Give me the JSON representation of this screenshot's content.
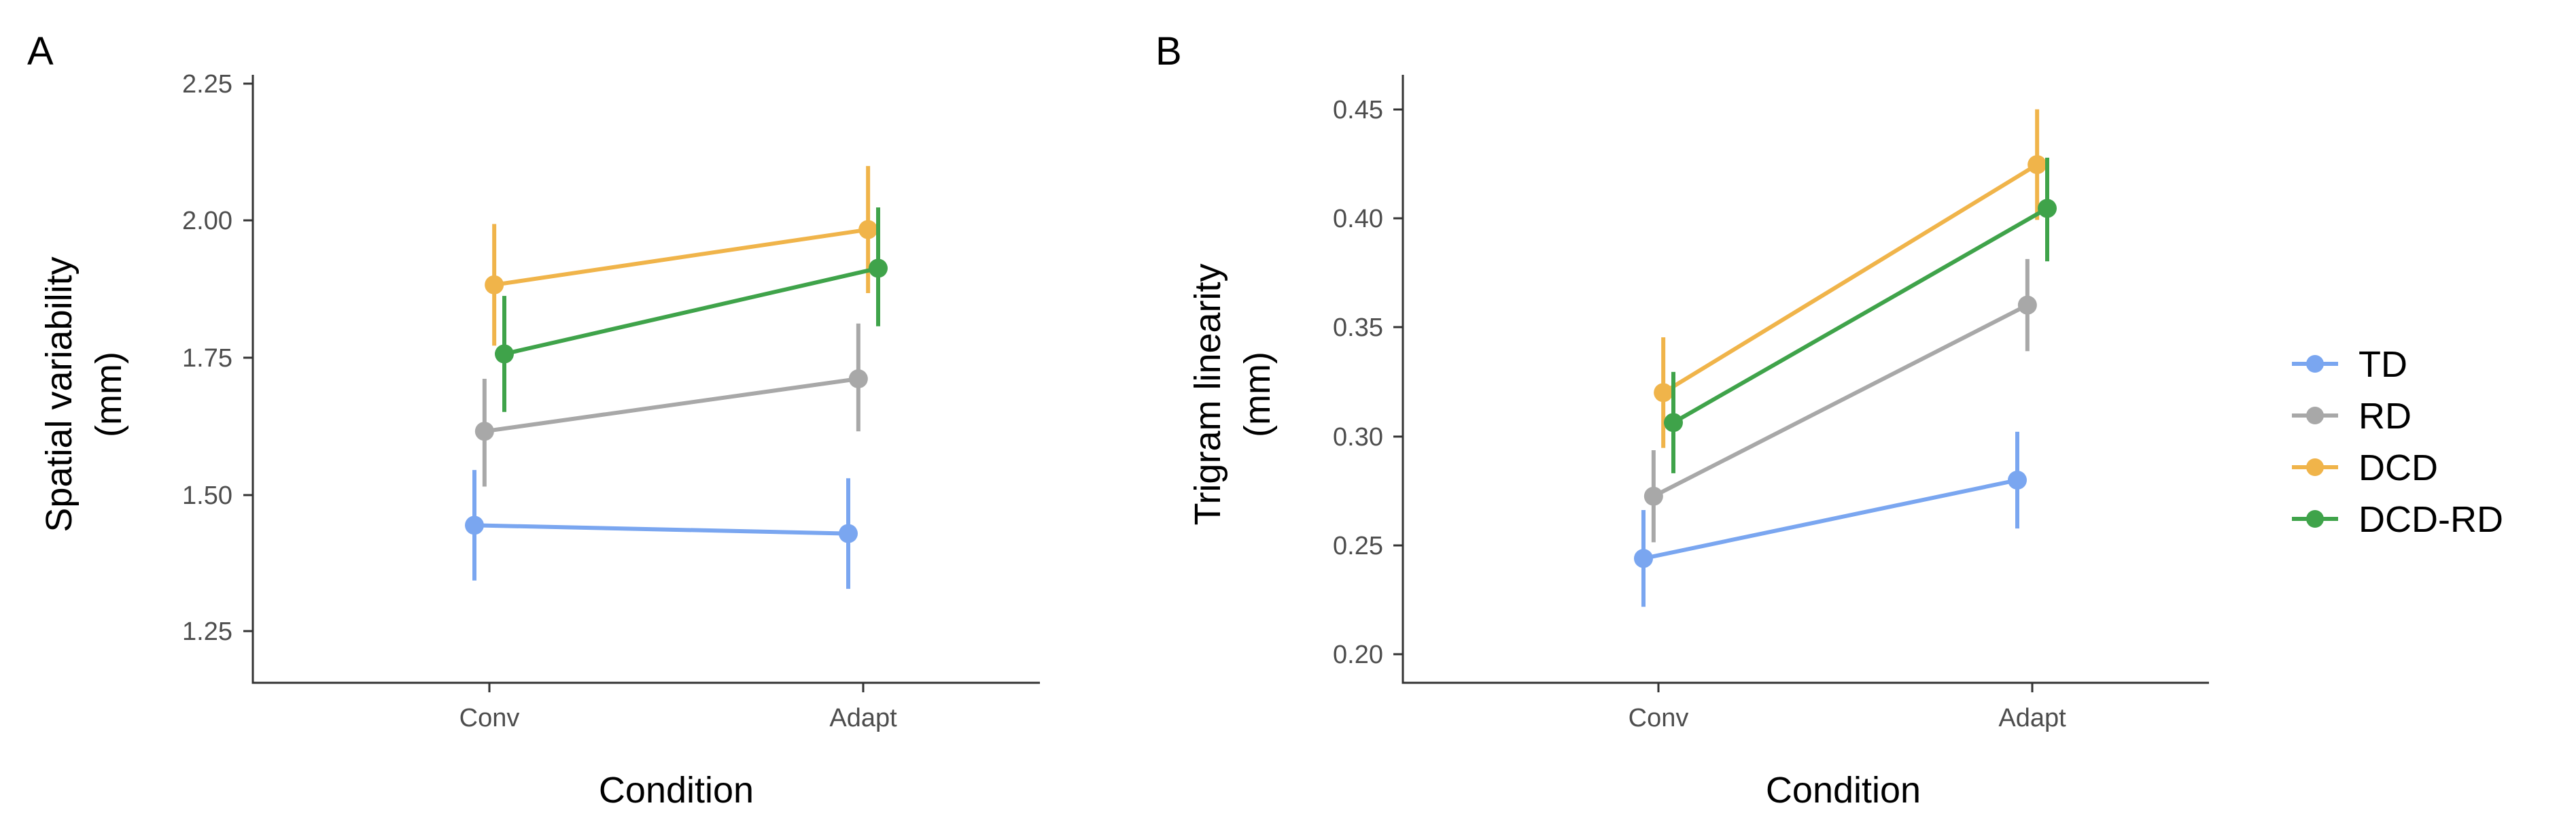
{
  "legend": {
    "entries": [
      {
        "name": "TD",
        "color": "#7aa6f0"
      },
      {
        "name": "RD",
        "color": "#a8a8a8"
      },
      {
        "name": "DCD",
        "color": "#f0b44a"
      },
      {
        "name": "DCD-RD",
        "color": "#3fa34a"
      }
    ]
  },
  "chart_data": [
    {
      "type": "line",
      "panel_label": "A",
      "xlabel": "Condition",
      "ylabel_lines": [
        "Spatial variability",
        "(mm)"
      ],
      "categories": [
        "Conv",
        "Adapt"
      ],
      "ylim": [
        1.17,
        2.27
      ],
      "yticks": [
        1.25,
        1.5,
        1.75,
        2.0,
        2.25
      ],
      "ytick_labels": [
        "1.25",
        "1.50",
        "1.75",
        "2.00",
        "2.25"
      ],
      "series": [
        {
          "name": "TD",
          "color": "#7aa6f0",
          "values": [
            1.455,
            1.44
          ],
          "err_low": [
            1.355,
            1.34
          ],
          "err_high": [
            1.555,
            1.54
          ],
          "dodge": -0.04
        },
        {
          "name": "RD",
          "color": "#a8a8a8",
          "values": [
            1.625,
            1.72
          ],
          "err_low": [
            1.525,
            1.625
          ],
          "err_high": [
            1.72,
            1.82
          ],
          "dodge": -0.013
        },
        {
          "name": "DCD",
          "color": "#f0b44a",
          "values": [
            1.89,
            1.99
          ],
          "err_low": [
            1.78,
            1.875
          ],
          "err_high": [
            2.0,
            2.105
          ],
          "dodge": 0.013
        },
        {
          "name": "DCD-RD",
          "color": "#3fa34a",
          "values": [
            1.765,
            1.92
          ],
          "err_low": [
            1.66,
            1.815
          ],
          "err_high": [
            1.87,
            2.03
          ],
          "dodge": 0.04
        }
      ]
    },
    {
      "type": "line",
      "panel_label": "B",
      "xlabel": "Condition",
      "ylabel_lines": [
        "Trigram linearity",
        "(mm)"
      ],
      "categories": [
        "Conv",
        "Adapt"
      ],
      "ylim": [
        0.193,
        0.457
      ],
      "yticks": [
        0.2,
        0.25,
        0.3,
        0.35,
        0.4,
        0.45
      ],
      "ytick_labels": [
        "0.20",
        "0.25",
        "0.30",
        "0.35",
        "0.40",
        "0.45"
      ],
      "series": [
        {
          "name": "TD",
          "color": "#7aa6f0",
          "values": [
            0.247,
            0.281
          ],
          "err_low": [
            0.226,
            0.26
          ],
          "err_high": [
            0.268,
            0.302
          ],
          "dodge": -0.04
        },
        {
          "name": "RD",
          "color": "#a8a8a8",
          "values": [
            0.274,
            0.357
          ],
          "err_low": [
            0.254,
            0.337
          ],
          "err_high": [
            0.294,
            0.377
          ],
          "dodge": -0.013
        },
        {
          "name": "DCD",
          "color": "#f0b44a",
          "values": [
            0.319,
            0.418
          ],
          "err_low": [
            0.295,
            0.394
          ],
          "err_high": [
            0.343,
            0.442
          ],
          "dodge": 0.013
        },
        {
          "name": "DCD-RD",
          "color": "#3fa34a",
          "values": [
            0.306,
            0.399
          ],
          "err_low": [
            0.284,
            0.376
          ],
          "err_high": [
            0.328,
            0.421
          ],
          "dodge": 0.04
        }
      ]
    }
  ]
}
